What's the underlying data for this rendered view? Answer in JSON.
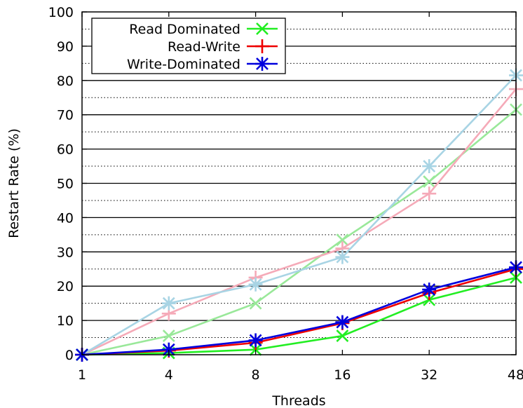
{
  "chart_data": {
    "type": "line",
    "xlabel": "Threads",
    "ylabel": "Restart Rate (%)",
    "categories": [
      "1",
      "4",
      "8",
      "16",
      "32",
      "48"
    ],
    "ylim": [
      0,
      100
    ],
    "y_ticks": [
      0,
      10,
      20,
      30,
      40,
      50,
      60,
      70,
      80,
      90,
      100
    ],
    "grid": {
      "major": "solid",
      "minor": "dotted"
    },
    "legend_position": "top-left",
    "series": [
      {
        "name": "Read Dominated",
        "marker": "x",
        "color": "#22ee22",
        "values": [
          0,
          0.5,
          1.5,
          5.5,
          16,
          22.5
        ]
      },
      {
        "name": "Read-Write",
        "marker": "plus",
        "color": "#ee0000",
        "values": [
          0,
          1.2,
          3.5,
          9.2,
          18,
          25
        ]
      },
      {
        "name": "Write-Dominated",
        "marker": "star",
        "color": "#0000dd",
        "values": [
          0,
          1.5,
          4.2,
          9.5,
          19,
          25.5
        ]
      },
      {
        "name": "",
        "marker": "x",
        "color": "#99e899",
        "values": [
          0,
          5.5,
          15,
          33.5,
          50.5,
          71.5
        ]
      },
      {
        "name": "",
        "marker": "plus",
        "color": "#f5aab8",
        "values": [
          0,
          12,
          22.5,
          31,
          47,
          77.5
        ]
      },
      {
        "name": "",
        "marker": "star",
        "color": "#a8d4e4",
        "values": [
          0,
          15,
          20.5,
          28.5,
          55,
          81.5
        ]
      }
    ]
  }
}
